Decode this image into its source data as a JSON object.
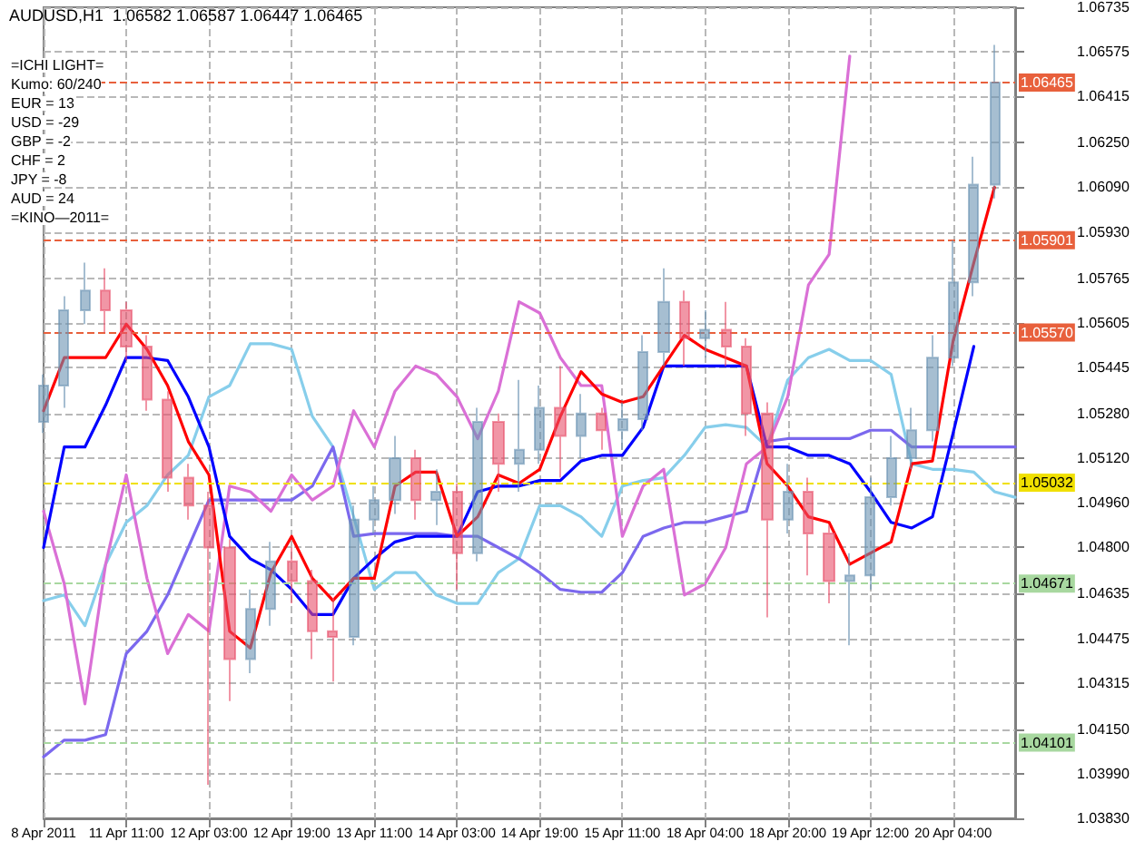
{
  "chart_data": {
    "type": "candlestick",
    "title": "AUDUSD,H1  1.06582 1.06587 1.06447 1.06465",
    "annotations": [
      "=ICHI LIGHT=",
      "Kumo: 60/240",
      "EUR = 13",
      "USD = -29",
      "GBP = -2",
      "CHF = 2",
      "JPY = -8",
      "AUD = 24",
      "=KINO—2011="
    ],
    "categories": [
      "8 Apr 2011",
      null,
      null,
      null,
      "11 Apr 11:00",
      null,
      null,
      null,
      "12 Apr 03:00",
      null,
      null,
      null,
      "12 Apr 19:00",
      null,
      null,
      null,
      "13 Apr 11:00",
      null,
      null,
      null,
      "14 Apr 03:00",
      null,
      null,
      null,
      "14 Apr 19:00",
      null,
      null,
      null,
      "15 Apr 11:00",
      null,
      null,
      null,
      "18 Apr 04:00",
      null,
      null,
      null,
      "18 Apr 20:00",
      null,
      null,
      null,
      "19 Apr 12:00",
      null,
      null,
      null,
      "20 Apr 04:00",
      null,
      null,
      null
    ],
    "ylim": [
      1.0383,
      1.06735
    ],
    "yticks": [
      {
        "value": 1.06735,
        "label": "1.06735"
      },
      {
        "value": 1.06575,
        "label": "1.06575"
      },
      {
        "value": 1.06415,
        "label": "1.06415"
      },
      {
        "value": 1.0625,
        "label": "1.06250"
      },
      {
        "value": 1.0609,
        "label": "1.06090"
      },
      {
        "value": 1.0593,
        "label": "1.05930"
      },
      {
        "value": 1.05765,
        "label": "1.05765"
      },
      {
        "value": 1.05605,
        "label": "1.05605"
      },
      {
        "value": 1.05445,
        "label": "1.05445"
      },
      {
        "value": 1.0528,
        "label": "1.05280"
      },
      {
        "value": 1.0512,
        "label": "1.05120"
      },
      {
        "value": 1.0496,
        "label": "1.04960"
      },
      {
        "value": 1.048,
        "label": "1.04800"
      },
      {
        "value": 1.04635,
        "label": "1.04635"
      },
      {
        "value": 1.04475,
        "label": "1.04475"
      },
      {
        "value": 1.04315,
        "label": "1.04315"
      },
      {
        "value": 1.0415,
        "label": "1.04150"
      },
      {
        "value": 1.0399,
        "label": "1.03990"
      },
      {
        "value": 1.0383,
        "label": "1.03830"
      }
    ],
    "grid": true,
    "marker": "none",
    "line_style": "solid",
    "series": [
      {
        "type": "line",
        "color": "#87ceeb",
        "values": [
          1.0461,
          1.0463,
          1.0452,
          1.0474,
          1.0489,
          1.0495,
          1.0506,
          1.0513,
          1.0534,
          1.0538,
          1.0553,
          1.0553,
          1.0551,
          1.0527,
          1.0516,
          1.0491,
          1.0465,
          1.0471,
          1.0471,
          1.0463,
          1.046,
          1.046,
          1.0471,
          1.0476,
          1.0495,
          1.0495,
          1.0491,
          1.0484,
          1.0502,
          1.0504,
          1.0505,
          1.0513,
          1.0523,
          1.0524,
          1.0523,
          1.0516,
          1.054,
          1.0548,
          1.0551,
          1.0547,
          1.0547,
          1.0542,
          1.051,
          1.0508,
          1.0508,
          1.0507,
          1.05,
          1.0498
        ]
      },
      {
        "type": "line",
        "color": "#7b68ee",
        "values": [
          1.0405,
          1.0411,
          1.0411,
          1.0413,
          1.0442,
          1.045,
          1.0463,
          1.048,
          1.0497,
          1.0497,
          1.0497,
          1.0497,
          1.0497,
          1.0502,
          1.0516,
          1.0484,
          1.0485,
          1.0485,
          1.0485,
          1.0485,
          1.0484,
          1.0484,
          1.048,
          1.0476,
          1.0471,
          1.0465,
          1.0464,
          1.0464,
          1.0471,
          1.0484,
          1.0487,
          1.0489,
          1.0489,
          1.0491,
          1.0493,
          1.0518,
          1.0519,
          1.0519,
          1.0519,
          1.0519,
          1.0522,
          1.0522,
          1.0516,
          1.0516,
          1.0516,
          1.0516,
          1.0516,
          1.0516
        ]
      },
      {
        "type": "line",
        "color": "#da70d6",
        "values": [
          1.0493,
          1.0467,
          1.0424,
          1.0474,
          1.0506,
          1.0469,
          1.0442,
          1.0456,
          1.045,
          1.0502,
          1.05,
          1.0493,
          1.0506,
          1.0497,
          1.0502,
          1.0529,
          1.0516,
          1.0536,
          1.0545,
          1.0542,
          1.0534,
          1.0519,
          1.0536,
          1.0568,
          1.0564,
          1.0548,
          1.0538,
          1.0538,
          1.0484,
          1.0502,
          1.0508,
          1.0463,
          1.0467,
          1.048,
          1.051,
          1.0516,
          1.0534,
          1.0574,
          1.0585,
          1.0656,
          null,
          null,
          null,
          null,
          null,
          null,
          null,
          null
        ]
      },
      {
        "type": "line",
        "color": "#0000ff",
        "values": [
          1.048,
          1.0516,
          1.0516,
          1.0531,
          1.0548,
          1.0548,
          1.0547,
          1.0534,
          1.0516,
          1.0484,
          1.0476,
          1.0472,
          1.0465,
          1.0456,
          1.0456,
          1.0469,
          1.0476,
          1.0482,
          1.0484,
          1.0484,
          1.0484,
          1.05,
          1.0502,
          1.0502,
          1.0504,
          1.0504,
          1.0511,
          1.0513,
          1.0513,
          1.0523,
          1.0545,
          1.0545,
          1.0545,
          1.0545,
          1.0545,
          1.0516,
          1.0516,
          1.0513,
          1.0513,
          1.051,
          1.05,
          1.0489,
          1.0487,
          1.0491,
          1.0521,
          1.0552,
          null,
          null
        ]
      },
      {
        "type": "line",
        "color": "#ff0000",
        "values": [
          1.0529,
          1.0548,
          1.0548,
          1.0548,
          1.056,
          1.0551,
          1.0538,
          1.0518,
          1.0506,
          1.045,
          1.0444,
          1.0471,
          1.0484,
          1.0469,
          1.0461,
          1.0469,
          1.0469,
          1.0502,
          1.0507,
          1.0507,
          1.0484,
          1.0491,
          1.0506,
          1.0503,
          1.0508,
          1.0527,
          1.0543,
          1.0535,
          1.0532,
          1.0534,
          1.0545,
          1.0556,
          1.0551,
          1.0548,
          1.0545,
          1.051,
          1.0502,
          1.0491,
          1.0489,
          1.0474,
          1.0478,
          1.0482,
          1.051,
          1.0511,
          1.0554,
          1.0582,
          1.0609,
          null
        ]
      },
      {
        "type": "candlestick",
        "colors": [
          "#6b93b3",
          "#6b93b3",
          "#6b93b3",
          "#e8506a",
          "#e8506a",
          "#e8506a",
          "#e8506a",
          "#e8506a",
          "#e8506a",
          "#e8506a",
          "#6b93b3",
          "#6b93b3",
          "#e8506a",
          "#e8506a",
          "#e8506a",
          "#6b93b3",
          "#6b93b3",
          "#6b93b3",
          "#e8506a",
          "#6b93b3",
          "#e8506a",
          "#6b93b3",
          "#e8506a",
          "#6b93b3",
          "#6b93b3",
          "#e8506a",
          "#6b93b3",
          "#e8506a",
          "#6b93b3",
          "#6b93b3",
          "#6b93b3",
          "#e8506a",
          "#6b93b3",
          "#e8506a",
          "#e8506a",
          "#e8506a",
          "#6b93b3",
          "#e8506a",
          "#e8506a",
          "#6b93b3",
          "#6b93b3",
          "#6b93b3",
          "#6b93b3",
          "#6b93b3",
          "#6b93b3",
          "#6b93b3",
          "#6b93b3",
          null
        ],
        "ohlc": [
          [
            1.0525,
            1.0542,
            1.0521,
            1.0538
          ],
          [
            1.0538,
            1.057,
            1.053,
            1.0565
          ],
          [
            1.0565,
            1.0582,
            1.056,
            1.0572
          ],
          [
            1.0572,
            1.058,
            1.0557,
            1.0565
          ],
          [
            1.0565,
            1.0568,
            1.0547,
            1.0552
          ],
          [
            1.0552,
            1.0556,
            1.0529,
            1.0533
          ],
          [
            1.0533,
            1.0536,
            1.05,
            1.0505
          ],
          [
            1.0505,
            1.051,
            1.049,
            1.0495
          ],
          [
            1.0495,
            1.05,
            1.0395,
            1.048
          ],
          [
            1.048,
            1.0483,
            1.0425,
            1.044
          ],
          [
            1.044,
            1.0465,
            1.0435,
            1.0458
          ],
          [
            1.0458,
            1.0482,
            1.0452,
            1.0475
          ],
          [
            1.0475,
            1.048,
            1.046,
            1.0468
          ],
          [
            1.0468,
            1.0472,
            1.044,
            1.045
          ],
          [
            1.045,
            1.0462,
            1.0432,
            1.0448
          ],
          [
            1.0448,
            1.0495,
            1.0445,
            1.049
          ],
          [
            1.049,
            1.0502,
            1.0485,
            1.0497
          ],
          [
            1.0497,
            1.052,
            1.0492,
            1.0512
          ],
          [
            1.0512,
            1.0515,
            1.049,
            1.0497
          ],
          [
            1.0497,
            1.0508,
            1.0488,
            1.05
          ],
          [
            1.05,
            1.0503,
            1.0465,
            1.0478
          ],
          [
            1.0478,
            1.053,
            1.0475,
            1.0525
          ],
          [
            1.0525,
            1.0528,
            1.05,
            1.051
          ],
          [
            1.051,
            1.054,
            1.05,
            1.0515
          ],
          [
            1.0515,
            1.0538,
            1.051,
            1.053
          ],
          [
            1.053,
            1.0545,
            1.0505,
            1.052
          ],
          [
            1.052,
            1.0535,
            1.0512,
            1.0528
          ],
          [
            1.0528,
            1.053,
            1.0515,
            1.0522
          ],
          [
            1.0522,
            1.0532,
            1.0515,
            1.0526
          ],
          [
            1.0526,
            1.0556,
            1.0522,
            1.055
          ],
          [
            1.055,
            1.058,
            1.0545,
            1.0568
          ],
          [
            1.0568,
            1.0572,
            1.0545,
            1.0555
          ],
          [
            1.0555,
            1.0565,
            1.0548,
            1.0558
          ],
          [
            1.0558,
            1.0568,
            1.0545,
            1.0552
          ],
          [
            1.0552,
            1.0555,
            1.052,
            1.0528
          ],
          [
            1.0528,
            1.0532,
            1.0455,
            1.049
          ],
          [
            1.049,
            1.051,
            1.0485,
            1.05
          ],
          [
            1.05,
            1.0505,
            1.047,
            1.0485
          ],
          [
            1.0485,
            1.0488,
            1.046,
            1.0468
          ],
          [
            1.0468,
            1.0478,
            1.0445,
            1.047
          ],
          [
            1.047,
            1.0505,
            1.0465,
            1.0498
          ],
          [
            1.0498,
            1.052,
            1.0495,
            1.0512
          ],
          [
            1.0512,
            1.053,
            1.0508,
            1.0522
          ],
          [
            1.0522,
            1.0556,
            1.0518,
            1.0548
          ],
          [
            1.0548,
            1.059,
            1.0545,
            1.0575
          ],
          [
            1.0575,
            1.062,
            1.057,
            1.061
          ],
          [
            1.061,
            1.066,
            1.0605,
            1.06465
          ],
          null
        ]
      }
    ],
    "ref_lines": [
      {
        "axis": "y",
        "value": 1.06465,
        "label": "1.06465",
        "color": "#e8603c",
        "line_style": "dashed"
      },
      {
        "axis": "y",
        "value": 1.05901,
        "label": "1.05901",
        "color": "#e8603c",
        "line_style": "dashed"
      },
      {
        "axis": "y",
        "value": 1.0557,
        "label": "1.05570",
        "color": "#e8603c",
        "line_style": "dashed"
      },
      {
        "axis": "y",
        "value": 1.05032,
        "label": "1.05032",
        "color": "#f0e000",
        "line_style": "dashed"
      },
      {
        "axis": "y",
        "value": 1.04671,
        "label": "1.04671",
        "color": "#a8d8a0",
        "line_style": "dashed"
      },
      {
        "axis": "y",
        "value": 1.04101,
        "label": "1.04101",
        "color": "#a8d8a0",
        "line_style": "dashed"
      }
    ]
  }
}
